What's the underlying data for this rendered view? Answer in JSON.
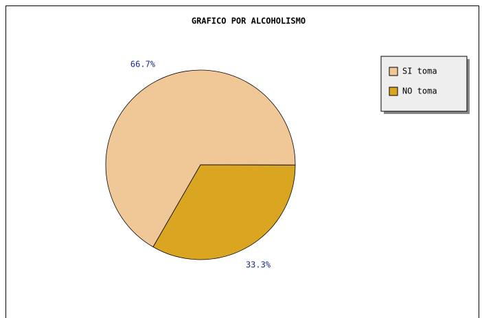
{
  "chart_data": {
    "type": "pie",
    "title": "GRAFICO POR ALCOHOLISMO",
    "series": [
      {
        "name": "SI toma",
        "color": "#f0c898",
        "values": [
          66.7
        ],
        "value_labels": [
          "66.7%"
        ]
      },
      {
        "name": "NO toma",
        "color": "#daa520",
        "values": [
          33.3
        ],
        "value_labels": [
          "33.3%"
        ]
      }
    ],
    "legend": "top-right"
  }
}
